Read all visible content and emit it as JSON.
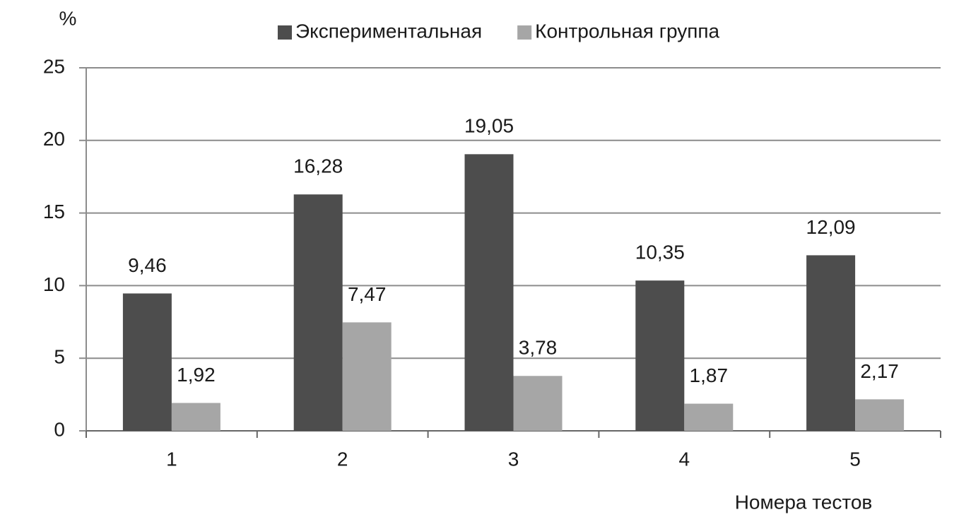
{
  "chart_data": {
    "type": "bar",
    "y_label": "%",
    "x_label": "Номера тестов",
    "categories": [
      "1",
      "2",
      "3",
      "4",
      "5"
    ],
    "series": [
      {
        "name": "Экспериментальная",
        "color": "#4d4d4d",
        "values": [
          9.46,
          16.28,
          19.05,
          10.35,
          12.09
        ],
        "value_labels": [
          "9,46",
          "16,28",
          "19,05",
          "10,35",
          "12,09"
        ]
      },
      {
        "name": "Контрольная группа",
        "color": "#a6a6a6",
        "values": [
          1.92,
          7.47,
          3.78,
          1.87,
          2.17
        ],
        "value_labels": [
          "1,92",
          "7,47",
          "3,78",
          "1,87",
          "2,17"
        ]
      }
    ],
    "ylim": [
      0,
      25
    ],
    "yticks": [
      0,
      5,
      10,
      15,
      20,
      25
    ],
    "grid": true,
    "legend": "top"
  }
}
